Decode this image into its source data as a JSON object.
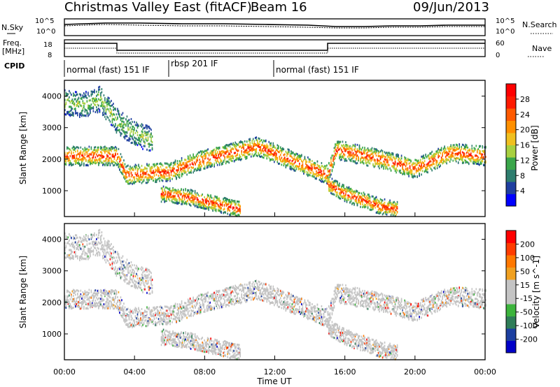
{
  "header": {
    "station": "Christmas Valley East (fitACF)",
    "beam": "Beam 16",
    "date": "09/Jun/2013"
  },
  "noise_panel": {
    "left_label": "N.Sky",
    "right_label": "N.Search",
    "left_ticks": [
      "10^5",
      "10^0"
    ],
    "right_ticks": [
      "10^5",
      "10^0"
    ]
  },
  "freq_panel": {
    "left_label": "Freq.",
    "left_unit": "[MHz]",
    "left_ticks": [
      "18",
      "8"
    ],
    "right_label": "Nave",
    "right_ticks": [
      "60",
      "0"
    ]
  },
  "cpid": {
    "label": "CPID",
    "segments": [
      {
        "label": "normal (fast) 151 IF",
        "start_h": 0,
        "end_h": 6
      },
      {
        "label": "rbsp 201 IF",
        "start_h": 6,
        "end_h": 11
      },
      {
        "label": "normal (fast) 151 IF",
        "start_h": 11,
        "end_h": 24
      }
    ]
  },
  "colors": {
    "power": [
      "#0000ff",
      "#1f3fa0",
      "#2e7d6e",
      "#3aa64a",
      "#a8d040",
      "#f0c020",
      "#ff9000",
      "#ff5a00",
      "#ff1a00",
      "#ff0000"
    ],
    "velocity": [
      "#0000c8",
      "#1c3fa0",
      "#2f7d58",
      "#3cb43c",
      "#c4c4c4",
      "#c4c4c4",
      "#f0a020",
      "#ff7800",
      "#ff3c00",
      "#ff0000"
    ]
  },
  "chart_data": [
    {
      "type": "heatmap",
      "name": "power",
      "ylabel": "Slant Range [km]",
      "colorbar_label": "Power [dB]",
      "colorbar_ticks": [
        "28",
        "24",
        "20",
        "16",
        "12",
        "8",
        "4"
      ],
      "ylim": [
        180,
        4500
      ],
      "yticks": [
        "4000",
        "3000",
        "2000",
        "1000"
      ],
      "xlim": [
        0,
        24
      ],
      "bands": [
        {
          "t": [
            0,
            3,
            3.5,
            6,
            8,
            11,
            15,
            15.5,
            18,
            20,
            22,
            24
          ],
          "r": [
            2100,
            2100,
            1500,
            1600,
            2000,
            2400,
            1500,
            2300,
            2000,
            1700,
            2200,
            2100
          ],
          "w": 300,
          "level": 8
        },
        {
          "t": [
            5.5,
            7,
            8.5,
            10
          ],
          "r": [
            900,
            800,
            600,
            400
          ],
          "w": 250,
          "level": 8
        },
        {
          "t": [
            15,
            16,
            17,
            18,
            19
          ],
          "r": [
            1200,
            900,
            700,
            500,
            400
          ],
          "w": 250,
          "level": 8
        },
        {
          "t": [
            0,
            1,
            2,
            3,
            4,
            5
          ],
          "r": [
            3800,
            3700,
            3900,
            3200,
            2800,
            2600
          ],
          "w": 400,
          "level": 4
        }
      ]
    },
    {
      "type": "heatmap",
      "name": "velocity",
      "ylabel": "Slant Range [km]",
      "colorbar_label": "Velocity [m s^-1]",
      "colorbar_ticks": [
        "200",
        "100",
        "50",
        "15",
        "-15",
        "-50",
        "-100",
        "-200"
      ],
      "ylim": [
        180,
        4500
      ],
      "yticks": [
        "4000",
        "3000",
        "2000",
        "1000"
      ],
      "xlim": [
        0,
        24
      ],
      "xticks": [
        "00:00",
        "04:00",
        "08:00",
        "12:00",
        "16:00",
        "20:00",
        "00:00"
      ],
      "xlabel": "Time UT"
    }
  ]
}
